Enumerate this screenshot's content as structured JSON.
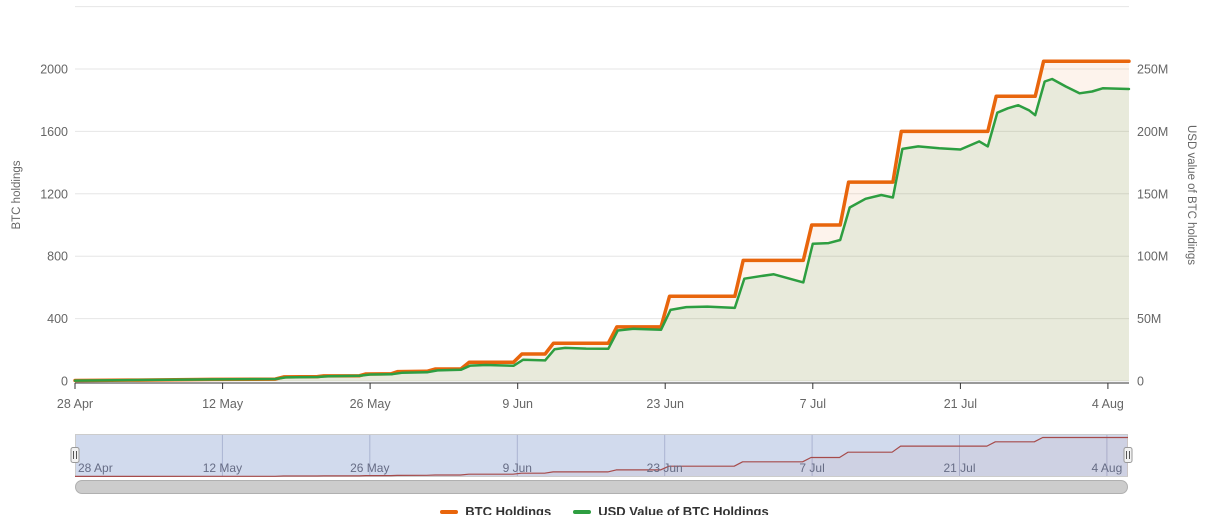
{
  "chart_data": {
    "type": "line",
    "x_unit": "days since 28 Apr",
    "x_ticks": {
      "labels": [
        "28 Apr",
        "12 May",
        "26 May",
        "9 Jun",
        "23 Jun",
        "7 Jul",
        "21 Jul",
        "4 Aug"
      ],
      "days": [
        0,
        14,
        28,
        42,
        56,
        70,
        84,
        98
      ]
    },
    "left_axis": {
      "title": "BTC holdings",
      "tick_labels": [
        "0",
        "400",
        "800",
        "1200",
        "1600",
        "2000"
      ],
      "tick_values": [
        0,
        400,
        800,
        1200,
        1600,
        2000
      ],
      "ylim": [
        0,
        2400
      ]
    },
    "right_axis": {
      "title": "USD value of BTC holdings",
      "tick_labels": [
        "0",
        "50M",
        "100M",
        "150M",
        "200M",
        "250M"
      ],
      "tick_values_musd": [
        0,
        50,
        100,
        150,
        200,
        250
      ],
      "ylim_musd": [
        0,
        300
      ]
    },
    "grid": true,
    "legend_position": "bottom-center",
    "series": [
      {
        "name": "BTC Holdings",
        "axis": "left",
        "color": "#E8650C",
        "fill": "rgba(232,101,12,0.08)",
        "line_width": 3.5,
        "points": [
          [
            0,
            3
          ],
          [
            6,
            6
          ],
          [
            13,
            10
          ],
          [
            19,
            12
          ],
          [
            19.8,
            26
          ],
          [
            23,
            28
          ],
          [
            23.6,
            33
          ],
          [
            27,
            34
          ],
          [
            27.6,
            45
          ],
          [
            30,
            46
          ],
          [
            30.6,
            60
          ],
          [
            33.4,
            62
          ],
          [
            34.2,
            77
          ],
          [
            36.6,
            77
          ],
          [
            37.4,
            120
          ],
          [
            41.6,
            120
          ],
          [
            42.4,
            173
          ],
          [
            44.6,
            173
          ],
          [
            45.4,
            242
          ],
          [
            50.6,
            242
          ],
          [
            51.4,
            347
          ],
          [
            55.6,
            347
          ],
          [
            56.4,
            543
          ],
          [
            62.6,
            543
          ],
          [
            63.4,
            773
          ],
          [
            69.1,
            773
          ],
          [
            69.9,
            1000
          ],
          [
            72.6,
            1000
          ],
          [
            73.4,
            1275
          ],
          [
            77.6,
            1275
          ],
          [
            78.4,
            1600
          ],
          [
            86.6,
            1600
          ],
          [
            87.4,
            1825
          ],
          [
            91.1,
            1825
          ],
          [
            91.9,
            2050
          ],
          [
            100,
            2050
          ]
        ]
      },
      {
        "name": "USD Value of BTC Holdings",
        "axis": "right",
        "color": "#2E9E41",
        "fill": "rgba(46,158,65,0.10)",
        "line_width": 2.5,
        "points": [
          [
            0,
            0.3
          ],
          [
            6,
            0.8
          ],
          [
            13,
            1.3
          ],
          [
            19,
            1.6
          ],
          [
            20,
            2.9
          ],
          [
            23,
            3.2
          ],
          [
            24,
            3.8
          ],
          [
            27,
            4.2
          ],
          [
            28,
            5.2
          ],
          [
            30,
            5.4
          ],
          [
            31,
            6.6
          ],
          [
            33.4,
            7
          ],
          [
            34.4,
            8.5
          ],
          [
            36.6,
            9
          ],
          [
            37.5,
            12.3
          ],
          [
            39,
            12.8
          ],
          [
            41.6,
            12.2
          ],
          [
            42.5,
            17
          ],
          [
            44.6,
            16.5
          ],
          [
            45.5,
            25.5
          ],
          [
            46.5,
            26.5
          ],
          [
            48.5,
            26
          ],
          [
            50.6,
            25.8
          ],
          [
            51.5,
            40.5
          ],
          [
            53,
            41.8
          ],
          [
            55.6,
            41
          ],
          [
            56.5,
            57
          ],
          [
            58,
            59.2
          ],
          [
            60,
            59.6
          ],
          [
            62.6,
            58.6
          ],
          [
            63.5,
            82
          ],
          [
            65,
            84
          ],
          [
            66.3,
            85.5
          ],
          [
            69.1,
            79
          ],
          [
            70,
            110
          ],
          [
            71.5,
            110.5
          ],
          [
            72.6,
            113
          ],
          [
            73.5,
            139
          ],
          [
            75,
            146
          ],
          [
            76.5,
            149
          ],
          [
            77.6,
            147
          ],
          [
            78.5,
            186
          ],
          [
            80,
            188
          ],
          [
            82,
            186.5
          ],
          [
            84,
            185.5
          ],
          [
            85.8,
            192
          ],
          [
            86.6,
            188
          ],
          [
            87.5,
            215
          ],
          [
            88.5,
            218.5
          ],
          [
            89.5,
            221
          ],
          [
            90.5,
            217
          ],
          [
            91.1,
            213
          ],
          [
            92,
            240
          ],
          [
            92.7,
            242
          ],
          [
            94,
            236
          ],
          [
            95.3,
            230.5
          ],
          [
            96.5,
            232
          ],
          [
            97.5,
            234.5
          ],
          [
            100,
            234
          ]
        ]
      }
    ]
  },
  "navigator": {
    "labels": [
      "28 Apr",
      "12 May",
      "26 May",
      "9 Jun",
      "23 Jun",
      "7 Jul",
      "21 Jul",
      "4 Aug"
    ],
    "days": [
      0,
      14,
      28,
      42,
      56,
      70,
      84,
      98
    ],
    "mask_color": "rgba(102,133,194,0.3)",
    "outline_color": "#CCCCCC",
    "line_color": "#A64B4B",
    "mirrors_series": "BTC Holdings"
  },
  "scrollbar": {
    "thumb_color": "#CCCCCC",
    "thumb_border_color": "#B0B0B0"
  },
  "legend": {
    "items": [
      {
        "label": "BTC Holdings",
        "color": "#E8650C"
      },
      {
        "label": "USD Value of BTC Holdings",
        "color": "#2E9E41"
      }
    ]
  },
  "colors": {
    "gridline": "#E6E6E6",
    "axis_line": "#333333",
    "tick_label": "#666666",
    "axis_title": "#666666",
    "nav_label": "#666C85"
  }
}
